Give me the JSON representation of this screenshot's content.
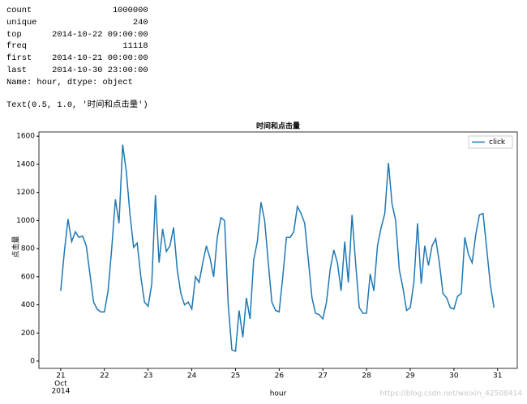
{
  "output_lines": [
    "count                1000000",
    "unique                   240",
    "top      2014-10-22 09:00:00",
    "freq                   11118",
    "first    2014-10-21 00:00:00",
    "last     2014-10-30 23:00:00",
    "Name: hour, dtype: object"
  ],
  "output_text": "Text(0.5, 1.0, '时间和点击量')",
  "watermark": "https://blog.csdn.net/weixin_42508414",
  "chart_data": {
    "type": "line",
    "title": "时间和点击量",
    "x_label": "hour",
    "y_label": "点击量",
    "x_tick_sublabel": [
      "Oct",
      "2014"
    ],
    "legend": "upper right",
    "xlim": [
      20.5,
      31.45
    ],
    "xticks": [
      21,
      22,
      23,
      24,
      25,
      26,
      27,
      28,
      29,
      30,
      31
    ],
    "ylim": [
      -52,
      1630
    ],
    "yticks": [
      0,
      200,
      400,
      600,
      800,
      1000,
      1200,
      1400,
      1600
    ],
    "x": [
      21,
      21.083,
      21.167,
      21.25,
      21.333,
      21.417,
      21.5,
      21.583,
      21.667,
      21.75,
      21.833,
      21.917,
      22,
      22.083,
      22.167,
      22.25,
      22.333,
      22.417,
      22.5,
      22.583,
      22.667,
      22.75,
      22.833,
      22.917,
      23,
      23.083,
      23.167,
      23.25,
      23.333,
      23.417,
      23.5,
      23.583,
      23.667,
      23.75,
      23.833,
      23.917,
      24,
      24.083,
      24.167,
      24.25,
      24.333,
      24.417,
      24.5,
      24.583,
      24.667,
      24.75,
      24.833,
      24.917,
      25,
      25.083,
      25.167,
      25.25,
      25.333,
      25.417,
      25.5,
      25.583,
      25.667,
      25.75,
      25.833,
      25.917,
      26,
      26.083,
      26.167,
      26.25,
      26.333,
      26.417,
      26.5,
      26.583,
      26.667,
      26.75,
      26.833,
      26.917,
      27,
      27.083,
      27.167,
      27.25,
      27.333,
      27.417,
      27.5,
      27.583,
      27.667,
      27.75,
      27.833,
      27.917,
      28,
      28.083,
      28.167,
      28.25,
      28.333,
      28.417,
      28.5,
      28.583,
      28.667,
      28.75,
      28.833,
      28.917,
      29,
      29.083,
      29.167,
      29.25,
      29.333,
      29.417,
      29.5,
      29.583,
      29.667,
      29.75,
      29.833,
      29.917,
      30,
      30.083,
      30.167,
      30.25,
      30.333,
      30.417,
      30.5,
      30.583,
      30.667,
      30.75,
      30.833,
      30.917
    ],
    "series": [
      {
        "name": "click",
        "color": "#1f77b4",
        "values": [
          500,
          780,
          1010,
          850,
          920,
          880,
          890,
          820,
          620,
          420,
          370,
          350,
          350,
          500,
          800,
          1150,
          980,
          1540,
          1350,
          1050,
          810,
          840,
          600,
          420,
          390,
          550,
          1180,
          700,
          940,
          780,
          820,
          950,
          650,
          480,
          400,
          420,
          370,
          600,
          560,
          700,
          820,
          730,
          600,
          880,
          1020,
          1000,
          400,
          80,
          70,
          360,
          170,
          450,
          300,
          720,
          850,
          1130,
          1000,
          700,
          420,
          360,
          350,
          600,
          880,
          880,
          920,
          1100,
          1050,
          980,
          720,
          450,
          340,
          330,
          300,
          420,
          650,
          790,
          700,
          500,
          850,
          560,
          1040,
          700,
          380,
          340,
          340,
          620,
          500,
          820,
          950,
          1050,
          1410,
          1120,
          1000,
          650,
          520,
          360,
          380,
          560,
          980,
          550,
          820,
          680,
          820,
          870,
          700,
          480,
          450,
          380,
          370,
          460,
          480,
          880,
          760,
          700,
          900,
          1040,
          1050,
          800,
          540,
          380
        ]
      }
    ]
  }
}
